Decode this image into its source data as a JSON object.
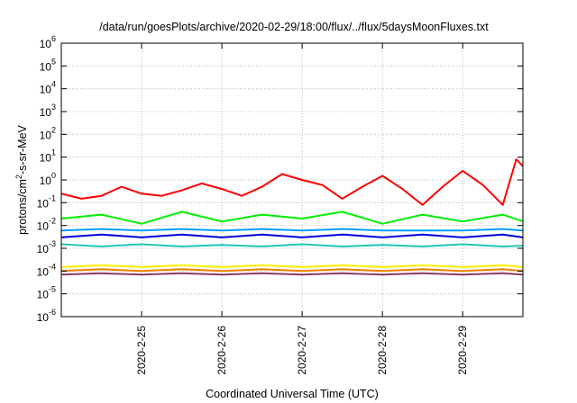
{
  "chart_data": {
    "type": "line",
    "title": "/data/run/goesPlots/archive/2020-02-29/18:00/flux/../flux/5daysMoonFluxes.txt",
    "xlabel": "Coordinated Universal Time (UTC)",
    "ylabel": "protons/cm2-s-sr-MeV",
    "y_scale": "log",
    "ylim": [
      1e-06,
      1000000.0
    ],
    "y_ticks": [
      {
        "base": "10",
        "exp": "-6",
        "value": -6
      },
      {
        "base": "10",
        "exp": "-5",
        "value": -5
      },
      {
        "base": "10",
        "exp": "-4",
        "value": -4
      },
      {
        "base": "10",
        "exp": "-3",
        "value": -3
      },
      {
        "base": "10",
        "exp": "-2",
        "value": -2
      },
      {
        "base": "10",
        "exp": "-1",
        "value": -1
      },
      {
        "base": "10",
        "exp": "0",
        "value": 0
      },
      {
        "base": "10",
        "exp": "1",
        "value": 1
      },
      {
        "base": "10",
        "exp": "2",
        "value": 2
      },
      {
        "base": "10",
        "exp": "3",
        "value": 3
      },
      {
        "base": "10",
        "exp": "4",
        "value": 4
      },
      {
        "base": "10",
        "exp": "5",
        "value": 5
      },
      {
        "base": "10",
        "exp": "6",
        "value": 6
      }
    ],
    "xlim": [
      "2020-02-24T00:00",
      "2020-02-29T18:00"
    ],
    "x_ticks": [
      {
        "label": "2020-2-25",
        "value": "2020-02-25T00:00"
      },
      {
        "label": "2020-2-26",
        "value": "2020-02-26T00:00"
      },
      {
        "label": "2020-2-27",
        "value": "2020-02-27T00:00"
      },
      {
        "label": "2020-2-28",
        "value": "2020-02-28T00:00"
      },
      {
        "label": "2020-2-29",
        "value": "2020-02-29T00:00"
      }
    ],
    "grid": true,
    "series": [
      {
        "color": "#ff0000",
        "x": [
          "2020-02-24T00:00",
          "2020-02-24T06:00",
          "2020-02-24T12:00",
          "2020-02-24T18:00",
          "2020-02-25T00:00",
          "2020-02-25T06:00",
          "2020-02-25T12:00",
          "2020-02-25T18:00",
          "2020-02-26T00:00",
          "2020-02-26T06:00",
          "2020-02-26T12:00",
          "2020-02-26T18:00",
          "2020-02-27T00:00",
          "2020-02-27T06:00",
          "2020-02-27T12:00",
          "2020-02-27T18:00",
          "2020-02-28T00:00",
          "2020-02-28T06:00",
          "2020-02-28T12:00",
          "2020-02-28T18:00",
          "2020-02-29T00:00",
          "2020-02-29T06:00",
          "2020-02-29T12:00",
          "2020-02-29T16:00",
          "2020-02-29T18:00"
        ],
        "y": [
          0.25,
          0.15,
          0.2,
          0.5,
          0.25,
          0.2,
          0.35,
          0.7,
          0.4,
          0.2,
          0.5,
          1.8,
          1.0,
          0.6,
          0.15,
          0.5,
          1.5,
          0.4,
          0.08,
          0.5,
          2.5,
          0.6,
          0.08,
          8,
          4
        ]
      },
      {
        "color": "#00ee00",
        "x": [
          "2020-02-24T00:00",
          "2020-02-24T12:00",
          "2020-02-25T00:00",
          "2020-02-25T12:00",
          "2020-02-26T00:00",
          "2020-02-26T12:00",
          "2020-02-27T00:00",
          "2020-02-27T12:00",
          "2020-02-28T00:00",
          "2020-02-28T12:00",
          "2020-02-29T00:00",
          "2020-02-29T12:00",
          "2020-02-29T18:00"
        ],
        "y": [
          0.02,
          0.03,
          0.012,
          0.04,
          0.015,
          0.03,
          0.02,
          0.04,
          0.012,
          0.03,
          0.015,
          0.03,
          0.015
        ]
      },
      {
        "color": "#00a0ff",
        "x": [
          "2020-02-24T00:00",
          "2020-02-24T12:00",
          "2020-02-25T00:00",
          "2020-02-25T12:00",
          "2020-02-26T00:00",
          "2020-02-26T12:00",
          "2020-02-27T00:00",
          "2020-02-27T12:00",
          "2020-02-28T00:00",
          "2020-02-28T12:00",
          "2020-02-29T00:00",
          "2020-02-29T12:00",
          "2020-02-29T18:00"
        ],
        "y": [
          0.006,
          0.007,
          0.006,
          0.007,
          0.006,
          0.007,
          0.006,
          0.007,
          0.006,
          0.006,
          0.006,
          0.007,
          0.006
        ]
      },
      {
        "color": "#0000dd",
        "x": [
          "2020-02-24T00:00",
          "2020-02-24T12:00",
          "2020-02-25T00:00",
          "2020-02-25T12:00",
          "2020-02-26T00:00",
          "2020-02-26T12:00",
          "2020-02-27T00:00",
          "2020-02-27T12:00",
          "2020-02-28T00:00",
          "2020-02-28T12:00",
          "2020-02-29T00:00",
          "2020-02-29T12:00",
          "2020-02-29T18:00"
        ],
        "y": [
          0.003,
          0.004,
          0.003,
          0.004,
          0.003,
          0.004,
          0.003,
          0.004,
          0.003,
          0.004,
          0.003,
          0.004,
          0.003
        ]
      },
      {
        "color": "#20c8b0",
        "x": [
          "2020-02-24T00:00",
          "2020-02-24T12:00",
          "2020-02-25T00:00",
          "2020-02-25T12:00",
          "2020-02-26T00:00",
          "2020-02-26T12:00",
          "2020-02-27T00:00",
          "2020-02-27T12:00",
          "2020-02-28T00:00",
          "2020-02-28T12:00",
          "2020-02-29T00:00",
          "2020-02-29T12:00",
          "2020-02-29T18:00"
        ],
        "y": [
          0.0015,
          0.0012,
          0.0015,
          0.0012,
          0.0014,
          0.0012,
          0.0015,
          0.0012,
          0.0014,
          0.0012,
          0.0015,
          0.0012,
          0.0013
        ]
      },
      {
        "color": "#ffee00",
        "x": [
          "2020-02-24T00:00",
          "2020-02-24T12:00",
          "2020-02-25T00:00",
          "2020-02-25T12:00",
          "2020-02-26T00:00",
          "2020-02-26T12:00",
          "2020-02-27T00:00",
          "2020-02-27T12:00",
          "2020-02-28T00:00",
          "2020-02-28T12:00",
          "2020-02-29T00:00",
          "2020-02-29T12:00",
          "2020-02-29T18:00"
        ],
        "y": [
          0.00015,
          0.00018,
          0.00015,
          0.00018,
          0.00015,
          0.00018,
          0.00015,
          0.00018,
          0.00015,
          0.00018,
          0.00015,
          0.00018,
          0.00015
        ]
      },
      {
        "color": "#f08000",
        "x": [
          "2020-02-24T00:00",
          "2020-02-24T12:00",
          "2020-02-25T00:00",
          "2020-02-25T12:00",
          "2020-02-26T00:00",
          "2020-02-26T12:00",
          "2020-02-27T00:00",
          "2020-02-27T12:00",
          "2020-02-28T00:00",
          "2020-02-28T12:00",
          "2020-02-29T00:00",
          "2020-02-29T12:00",
          "2020-02-29T18:00"
        ],
        "y": [
          0.0001,
          0.00012,
          0.0001,
          0.00012,
          0.0001,
          0.00012,
          0.0001,
          0.00012,
          0.0001,
          0.00012,
          0.0001,
          0.00012,
          0.0001
        ]
      },
      {
        "color": "#8b3a62",
        "x": [
          "2020-02-24T00:00",
          "2020-02-24T12:00",
          "2020-02-25T00:00",
          "2020-02-25T12:00",
          "2020-02-26T00:00",
          "2020-02-26T12:00",
          "2020-02-27T00:00",
          "2020-02-27T12:00",
          "2020-02-28T00:00",
          "2020-02-28T12:00",
          "2020-02-29T00:00",
          "2020-02-29T12:00",
          "2020-02-29T18:00"
        ],
        "y": [
          7e-05,
          8e-05,
          7e-05,
          8e-05,
          7e-05,
          8e-05,
          7e-05,
          8e-05,
          7e-05,
          8e-05,
          7e-05,
          8e-05,
          7e-05
        ]
      }
    ]
  }
}
